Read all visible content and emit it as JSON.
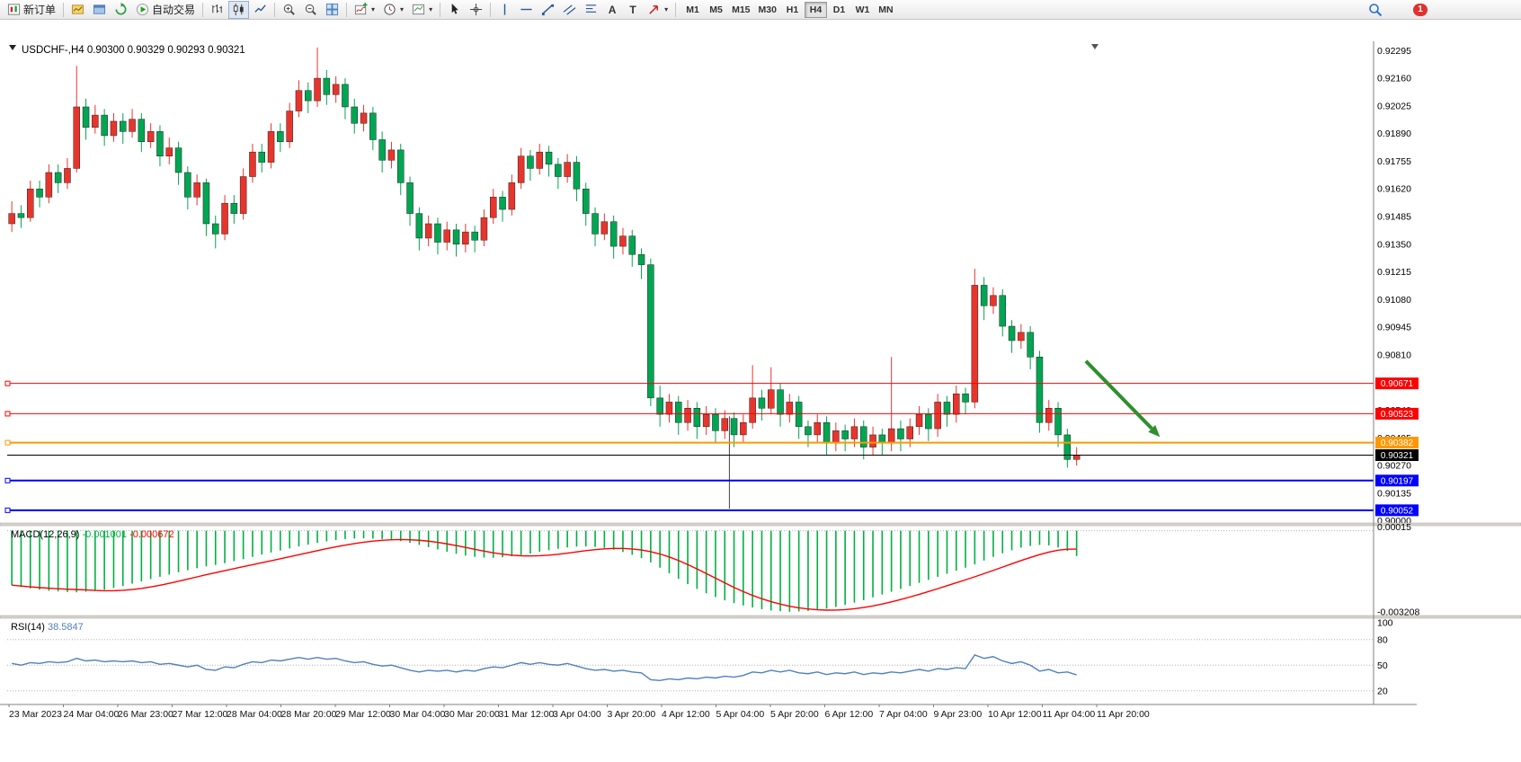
{
  "toolbar": {
    "new_order": "新订单",
    "auto_trading": "自动交易",
    "text_tool": "A",
    "label_tool": "T",
    "timeframes": [
      "M1",
      "M5",
      "M15",
      "M30",
      "H1",
      "H4",
      "D1",
      "W1",
      "MN"
    ],
    "active_timeframe": "H4",
    "notification_count": "1"
  },
  "colors": {
    "up": "#e8352c",
    "down": "#00a651",
    "macd_hist": "#00b140",
    "macd_signal": "#ff0000",
    "rsi_line": "#4f81bd",
    "arrow": "#2f8f2f"
  },
  "chart_data": [
    {
      "type": "candlestick",
      "title": "USDCHF-,H4",
      "ohlc_display": "0.90300 0.90329 0.90293 0.90321",
      "timeframe": "H4",
      "ylim": [
        0.8999,
        0.9234
      ],
      "ytick_labels": [
        "0.90000",
        "0.90135",
        "0.90270",
        "0.90405",
        "0.90540",
        "0.90675",
        "0.90810",
        "0.90945",
        "0.91080",
        "0.91215",
        "0.91350",
        "0.91485",
        "0.91620",
        "0.91755",
        "0.91890",
        "0.92025",
        "0.92160",
        "0.92295"
      ],
      "x_labels": [
        "23 Mar 2023",
        "24 Mar 04:00",
        "26 Mar 23:00",
        "27 Mar 12:00",
        "28 Mar 04:00",
        "28 Mar 20:00",
        "29 Mar 12:00",
        "30 Mar 04:00",
        "30 Mar 20:00",
        "31 Mar 12:00",
        "3 Apr 04:00",
        "3 Apr 20:00",
        "4 Apr 12:00",
        "5 Apr 04:00",
        "5 Apr 20:00",
        "6 Apr 12:00",
        "7 Apr 04:00",
        "9 Apr 23:00",
        "10 Apr 12:00",
        "11 Apr 04:00",
        "11 Apr 20:00"
      ],
      "hlines": [
        {
          "price": 0.90671,
          "label": "0.90671",
          "color": "#ff0000",
          "width": 1,
          "handles": true
        },
        {
          "price": 0.90523,
          "label": "0.90523",
          "color": "#ff0000",
          "width": 1,
          "handles": true
        },
        {
          "price": 0.90382,
          "label": "0.90382",
          "color": "#ff9800",
          "width": 2,
          "handles": true
        },
        {
          "price": 0.90321,
          "label": "0.90321",
          "color": "#000000",
          "width": 1,
          "handles": false
        },
        {
          "price": 0.90197,
          "label": "0.90197",
          "color": "#0000ff",
          "width": 2,
          "handles": true
        },
        {
          "price": 0.90052,
          "label": "0.90052",
          "color": "#0000ff",
          "width": 2,
          "handles": true
        }
      ],
      "vline": {
        "index": 77.5,
        "from": 0.9051,
        "to": 0.9006
      },
      "arrow": {
        "i1": 116,
        "p1": 0.9078,
        "i2": 124,
        "p2": 0.9041
      },
      "candles": [
        [
          0.9145,
          0.9156,
          0.9141,
          0.915
        ],
        [
          0.915,
          0.9154,
          0.9143,
          0.9148
        ],
        [
          0.9148,
          0.9166,
          0.9146,
          0.9162
        ],
        [
          0.9162,
          0.9166,
          0.9153,
          0.9158
        ],
        [
          0.9158,
          0.9174,
          0.9155,
          0.917
        ],
        [
          0.917,
          0.9174,
          0.916,
          0.9165
        ],
        [
          0.9165,
          0.9177,
          0.9162,
          0.9172
        ],
        [
          0.9172,
          0.9222,
          0.917,
          0.9202
        ],
        [
          0.9202,
          0.9206,
          0.9186,
          0.9192
        ],
        [
          0.9192,
          0.9203,
          0.9189,
          0.9198
        ],
        [
          0.9198,
          0.9201,
          0.9183,
          0.9188
        ],
        [
          0.9188,
          0.9199,
          0.9185,
          0.9195
        ],
        [
          0.9195,
          0.9199,
          0.9184,
          0.919
        ],
        [
          0.919,
          0.9201,
          0.9187,
          0.9196
        ],
        [
          0.9196,
          0.9199,
          0.918,
          0.9185
        ],
        [
          0.9185,
          0.9194,
          0.9182,
          0.919
        ],
        [
          0.919,
          0.9193,
          0.9173,
          0.9178
        ],
        [
          0.9178,
          0.9187,
          0.9174,
          0.9182
        ],
        [
          0.9182,
          0.9185,
          0.9164,
          0.917
        ],
        [
          0.917,
          0.9173,
          0.9152,
          0.9158
        ],
        [
          0.9158,
          0.9169,
          0.9154,
          0.9165
        ],
        [
          0.9165,
          0.9167,
          0.9139,
          0.9145
        ],
        [
          0.9145,
          0.9149,
          0.9133,
          0.914
        ],
        [
          0.914,
          0.9159,
          0.9137,
          0.9155
        ],
        [
          0.9155,
          0.9159,
          0.9145,
          0.915
        ],
        [
          0.915,
          0.9172,
          0.9147,
          0.9168
        ],
        [
          0.9168,
          0.9184,
          0.9165,
          0.918
        ],
        [
          0.918,
          0.9184,
          0.917,
          0.9175
        ],
        [
          0.9175,
          0.9194,
          0.9172,
          0.919
        ],
        [
          0.919,
          0.9194,
          0.918,
          0.9185
        ],
        [
          0.9185,
          0.9204,
          0.9182,
          0.92
        ],
        [
          0.92,
          0.9215,
          0.9197,
          0.921
        ],
        [
          0.921,
          0.9214,
          0.9199,
          0.9205
        ],
        [
          0.9205,
          0.9231,
          0.9202,
          0.9216
        ],
        [
          0.9216,
          0.922,
          0.9203,
          0.9208
        ],
        [
          0.9208,
          0.9217,
          0.9204,
          0.9213
        ],
        [
          0.9213,
          0.9216,
          0.9196,
          0.9202
        ],
        [
          0.9202,
          0.9206,
          0.9189,
          0.9194
        ],
        [
          0.9194,
          0.9203,
          0.919,
          0.9199
        ],
        [
          0.9199,
          0.9202,
          0.9181,
          0.9186
        ],
        [
          0.9186,
          0.919,
          0.917,
          0.9176
        ],
        [
          0.9176,
          0.9185,
          0.9172,
          0.9181
        ],
        [
          0.9181,
          0.9184,
          0.9159,
          0.9165
        ],
        [
          0.9165,
          0.9168,
          0.9144,
          0.915
        ],
        [
          0.915,
          0.9153,
          0.9132,
          0.9138
        ],
        [
          0.9138,
          0.9149,
          0.9134,
          0.9145
        ],
        [
          0.9145,
          0.9148,
          0.913,
          0.9136
        ],
        [
          0.9136,
          0.9146,
          0.9132,
          0.9142
        ],
        [
          0.9142,
          0.9145,
          0.9129,
          0.9135
        ],
        [
          0.9135,
          0.9145,
          0.9131,
          0.9141
        ],
        [
          0.9141,
          0.9144,
          0.9131,
          0.9137
        ],
        [
          0.9137,
          0.9152,
          0.9134,
          0.9148
        ],
        [
          0.9148,
          0.9162,
          0.9145,
          0.9158
        ],
        [
          0.9158,
          0.9161,
          0.9146,
          0.9152
        ],
        [
          0.9152,
          0.9169,
          0.9149,
          0.9165
        ],
        [
          0.9165,
          0.9182,
          0.9162,
          0.9178
        ],
        [
          0.9178,
          0.9181,
          0.9166,
          0.9172
        ],
        [
          0.9172,
          0.9184,
          0.9169,
          0.918
        ],
        [
          0.918,
          0.9183,
          0.9168,
          0.9174
        ],
        [
          0.9174,
          0.9177,
          0.9162,
          0.9168
        ],
        [
          0.9168,
          0.9179,
          0.9165,
          0.9175
        ],
        [
          0.9175,
          0.9178,
          0.9156,
          0.9162
        ],
        [
          0.9162,
          0.9165,
          0.9144,
          0.915
        ],
        [
          0.915,
          0.9153,
          0.9134,
          0.914
        ],
        [
          0.914,
          0.915,
          0.9137,
          0.9146
        ],
        [
          0.9146,
          0.9149,
          0.9128,
          0.9134
        ],
        [
          0.9134,
          0.9143,
          0.913,
          0.9139
        ],
        [
          0.9139,
          0.9142,
          0.9124,
          0.913
        ],
        [
          0.913,
          0.9133,
          0.9118,
          0.9125
        ],
        [
          0.9125,
          0.9128,
          0.9056,
          0.906
        ],
        [
          0.906,
          0.9066,
          0.9046,
          0.9052
        ],
        [
          0.9052,
          0.9062,
          0.9048,
          0.9058
        ],
        [
          0.9058,
          0.9061,
          0.9042,
          0.9048
        ],
        [
          0.9048,
          0.9059,
          0.9044,
          0.9055
        ],
        [
          0.9055,
          0.9058,
          0.904,
          0.9046
        ],
        [
          0.9046,
          0.9056,
          0.9042,
          0.9052
        ],
        [
          0.9052,
          0.9055,
          0.9038,
          0.9044
        ],
        [
          0.9044,
          0.9054,
          0.904,
          0.905
        ],
        [
          0.905,
          0.9053,
          0.9036,
          0.9042
        ],
        [
          0.9042,
          0.9052,
          0.9038,
          0.9048
        ],
        [
          0.9048,
          0.9076,
          0.9045,
          0.906
        ],
        [
          0.906,
          0.9064,
          0.9049,
          0.9055
        ],
        [
          0.9055,
          0.9075,
          0.9052,
          0.9064
        ],
        [
          0.9064,
          0.9067,
          0.9046,
          0.9052
        ],
        [
          0.9052,
          0.9062,
          0.9048,
          0.9058
        ],
        [
          0.9058,
          0.9061,
          0.904,
          0.9046
        ],
        [
          0.9046,
          0.9049,
          0.9036,
          0.9042
        ],
        [
          0.9042,
          0.9052,
          0.9038,
          0.9048
        ],
        [
          0.9048,
          0.9051,
          0.9032,
          0.9038
        ],
        [
          0.9038,
          0.9048,
          0.9034,
          0.9044
        ],
        [
          0.9044,
          0.9047,
          0.9034,
          0.904
        ],
        [
          0.904,
          0.905,
          0.9036,
          0.9046
        ],
        [
          0.9046,
          0.9049,
          0.903,
          0.9036
        ],
        [
          0.9036,
          0.9046,
          0.9032,
          0.9042
        ],
        [
          0.9042,
          0.9045,
          0.9032,
          0.9038
        ],
        [
          0.9038,
          0.908,
          0.9034,
          0.9045
        ],
        [
          0.9045,
          0.9049,
          0.9034,
          0.904
        ],
        [
          0.904,
          0.905,
          0.9036,
          0.9046
        ],
        [
          0.9046,
          0.9056,
          0.9042,
          0.9052
        ],
        [
          0.9052,
          0.9055,
          0.9039,
          0.9045
        ],
        [
          0.9045,
          0.9062,
          0.9041,
          0.9058
        ],
        [
          0.9058,
          0.9061,
          0.9046,
          0.9052
        ],
        [
          0.9052,
          0.9066,
          0.9048,
          0.9062
        ],
        [
          0.9062,
          0.9065,
          0.9052,
          0.9058
        ],
        [
          0.9058,
          0.9123,
          0.9055,
          0.9115
        ],
        [
          0.9115,
          0.9119,
          0.9098,
          0.9105
        ],
        [
          0.9105,
          0.9114,
          0.9101,
          0.911
        ],
        [
          0.911,
          0.9113,
          0.909,
          0.9095
        ],
        [
          0.9095,
          0.9098,
          0.9082,
          0.9088
        ],
        [
          0.9088,
          0.9096,
          0.9084,
          0.9092
        ],
        [
          0.9092,
          0.9095,
          0.9074,
          0.908
        ],
        [
          0.908,
          0.9083,
          0.9043,
          0.9048
        ],
        [
          0.9048,
          0.9059,
          0.9044,
          0.9055
        ],
        [
          0.9055,
          0.9058,
          0.9036,
          0.9042
        ],
        [
          0.9042,
          0.9045,
          0.9026,
          0.903
        ],
        [
          0.903,
          0.9036,
          0.9027,
          0.90321
        ]
      ]
    },
    {
      "type": "macd",
      "label": "MACD(12,26,9)",
      "values": [
        "-0.001001",
        "-0.000672"
      ],
      "ylim": [
        -0.00335,
        0.0002
      ],
      "yticks": [
        {
          "label": "0.00015",
          "value": 0.00015
        },
        {
          "label": "-0.003208",
          "value": -0.003208
        }
      ],
      "signal_period": 9,
      "histogram": [
        -0.00215,
        -0.00222,
        -0.00228,
        -0.00233,
        -0.00237,
        -0.0024,
        -0.00242,
        -0.00243,
        -0.00241,
        -0.00238,
        -0.00233,
        -0.00226,
        -0.00218,
        -0.00209,
        -0.002,
        -0.00191,
        -0.00182,
        -0.00173,
        -0.00164,
        -0.00156,
        -0.00148,
        -0.00141,
        -0.00135,
        -0.00128,
        -0.0012,
        -0.00112,
        -0.00103,
        -0.00094,
        -0.00086,
        -0.00078,
        -0.0007,
        -0.00062,
        -0.00055,
        -0.00048,
        -0.00042,
        -0.00037,
        -0.00033,
        -0.00031,
        -0.0003,
        -0.00031,
        -0.00033,
        -0.00036,
        -0.00041,
        -0.00048,
        -0.00056,
        -0.00065,
        -0.00074,
        -0.00083,
        -0.00091,
        -0.00098,
        -0.00103,
        -0.00106,
        -0.00107,
        -0.00105,
        -0.00101,
        -0.00096,
        -0.0009,
        -0.00083,
        -0.00077,
        -0.00071,
        -0.00066,
        -0.00063,
        -0.00062,
        -0.00064,
        -0.00068,
        -0.00075,
        -0.00084,
        -0.00095,
        -0.00108,
        -0.00125,
        -0.00146,
        -0.00168,
        -0.0019,
        -0.00211,
        -0.0023,
        -0.00247,
        -0.00262,
        -0.00275,
        -0.00286,
        -0.00295,
        -0.00303,
        -0.0031,
        -0.00315,
        -0.00318,
        -0.0032,
        -0.00319,
        -0.00317,
        -0.00313,
        -0.00308,
        -0.00301,
        -0.00293,
        -0.00284,
        -0.00274,
        -0.00263,
        -0.00252,
        -0.00241,
        -0.0023,
        -0.00218,
        -0.00206,
        -0.00194,
        -0.00182,
        -0.0017,
        -0.00158,
        -0.00146,
        -0.00133,
        -0.00118,
        -0.00103,
        -0.00089,
        -0.00077,
        -0.00067,
        -0.0006,
        -0.00056,
        -0.00058,
        -0.00066,
        -0.0008,
        -0.001001
      ]
    },
    {
      "type": "rsi",
      "label": "RSI(14)",
      "value": "38.5847",
      "ylim": [
        5,
        105
      ],
      "levels": [
        80,
        50,
        20
      ],
      "yticks": [
        {
          "label": "100",
          "value": 100
        },
        {
          "label": "80",
          "value": 80
        },
        {
          "label": "50",
          "value": 50
        },
        {
          "label": "20",
          "value": 20
        }
      ],
      "values": [
        52,
        50,
        53,
        52,
        54,
        53,
        54,
        58,
        55,
        56,
        54,
        55,
        54,
        55,
        53,
        54,
        51,
        52,
        50,
        48,
        50,
        45,
        44,
        48,
        47,
        51,
        54,
        53,
        56,
        55,
        57,
        59,
        57,
        59,
        57,
        58,
        55,
        53,
        54,
        51,
        49,
        50,
        47,
        44,
        42,
        44,
        43,
        44,
        42,
        44,
        43,
        46,
        48,
        47,
        50,
        53,
        51,
        53,
        51,
        50,
        52,
        49,
        46,
        44,
        45,
        43,
        44,
        42,
        41,
        33,
        32,
        34,
        33,
        35,
        34,
        36,
        35,
        37,
        36,
        38,
        42,
        41,
        44,
        42,
        44,
        41,
        40,
        42,
        39,
        41,
        40,
        42,
        39,
        41,
        40,
        42,
        41,
        43,
        45,
        43,
        46,
        45,
        47,
        46,
        62,
        58,
        60,
        55,
        52,
        54,
        50,
        43,
        45,
        41,
        42,
        38.58
      ]
    }
  ]
}
